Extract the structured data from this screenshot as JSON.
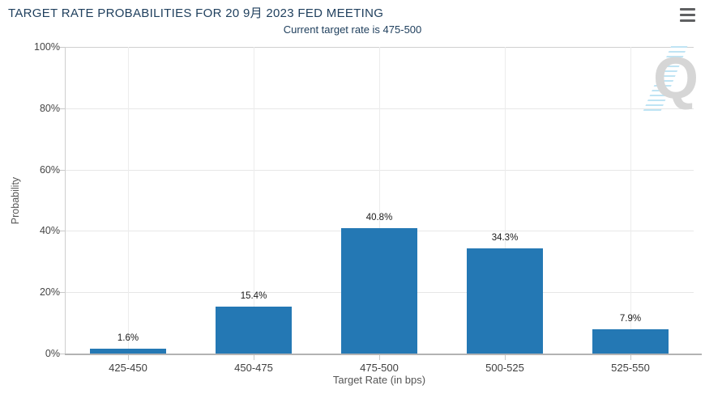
{
  "header": {
    "title": "TARGET RATE PROBABILITIES FOR 20 9月 2023 FED MEETING",
    "subtitle": "Current target rate is 475-500"
  },
  "icons": {
    "menu": "hamburger-icon",
    "watermark_letter": "Q"
  },
  "colors": {
    "bar": "#2478b4",
    "heading": "#20405e",
    "watermark_gray": "#d6d6d6",
    "watermark_blue": "#bfe4f4"
  },
  "chart_data": {
    "type": "bar",
    "title": "TARGET RATE PROBABILITIES FOR 20 9月 2023 FED MEETING",
    "subtitle": "Current target rate is 475-500",
    "categories": [
      "425-450",
      "450-475",
      "475-500",
      "500-525",
      "525-550"
    ],
    "values": [
      1.6,
      15.4,
      40.8,
      34.3,
      7.9
    ],
    "value_labels": [
      "1.6%",
      "15.4%",
      "40.8%",
      "34.3%",
      "7.9%"
    ],
    "xlabel": "Target Rate (in bps)",
    "ylabel": "Probability",
    "ylim": [
      0,
      100
    ],
    "yticks": [
      "0%",
      "20%",
      "40%",
      "60%",
      "80%",
      "100%"
    ],
    "grid": true,
    "legend_position": "none"
  }
}
